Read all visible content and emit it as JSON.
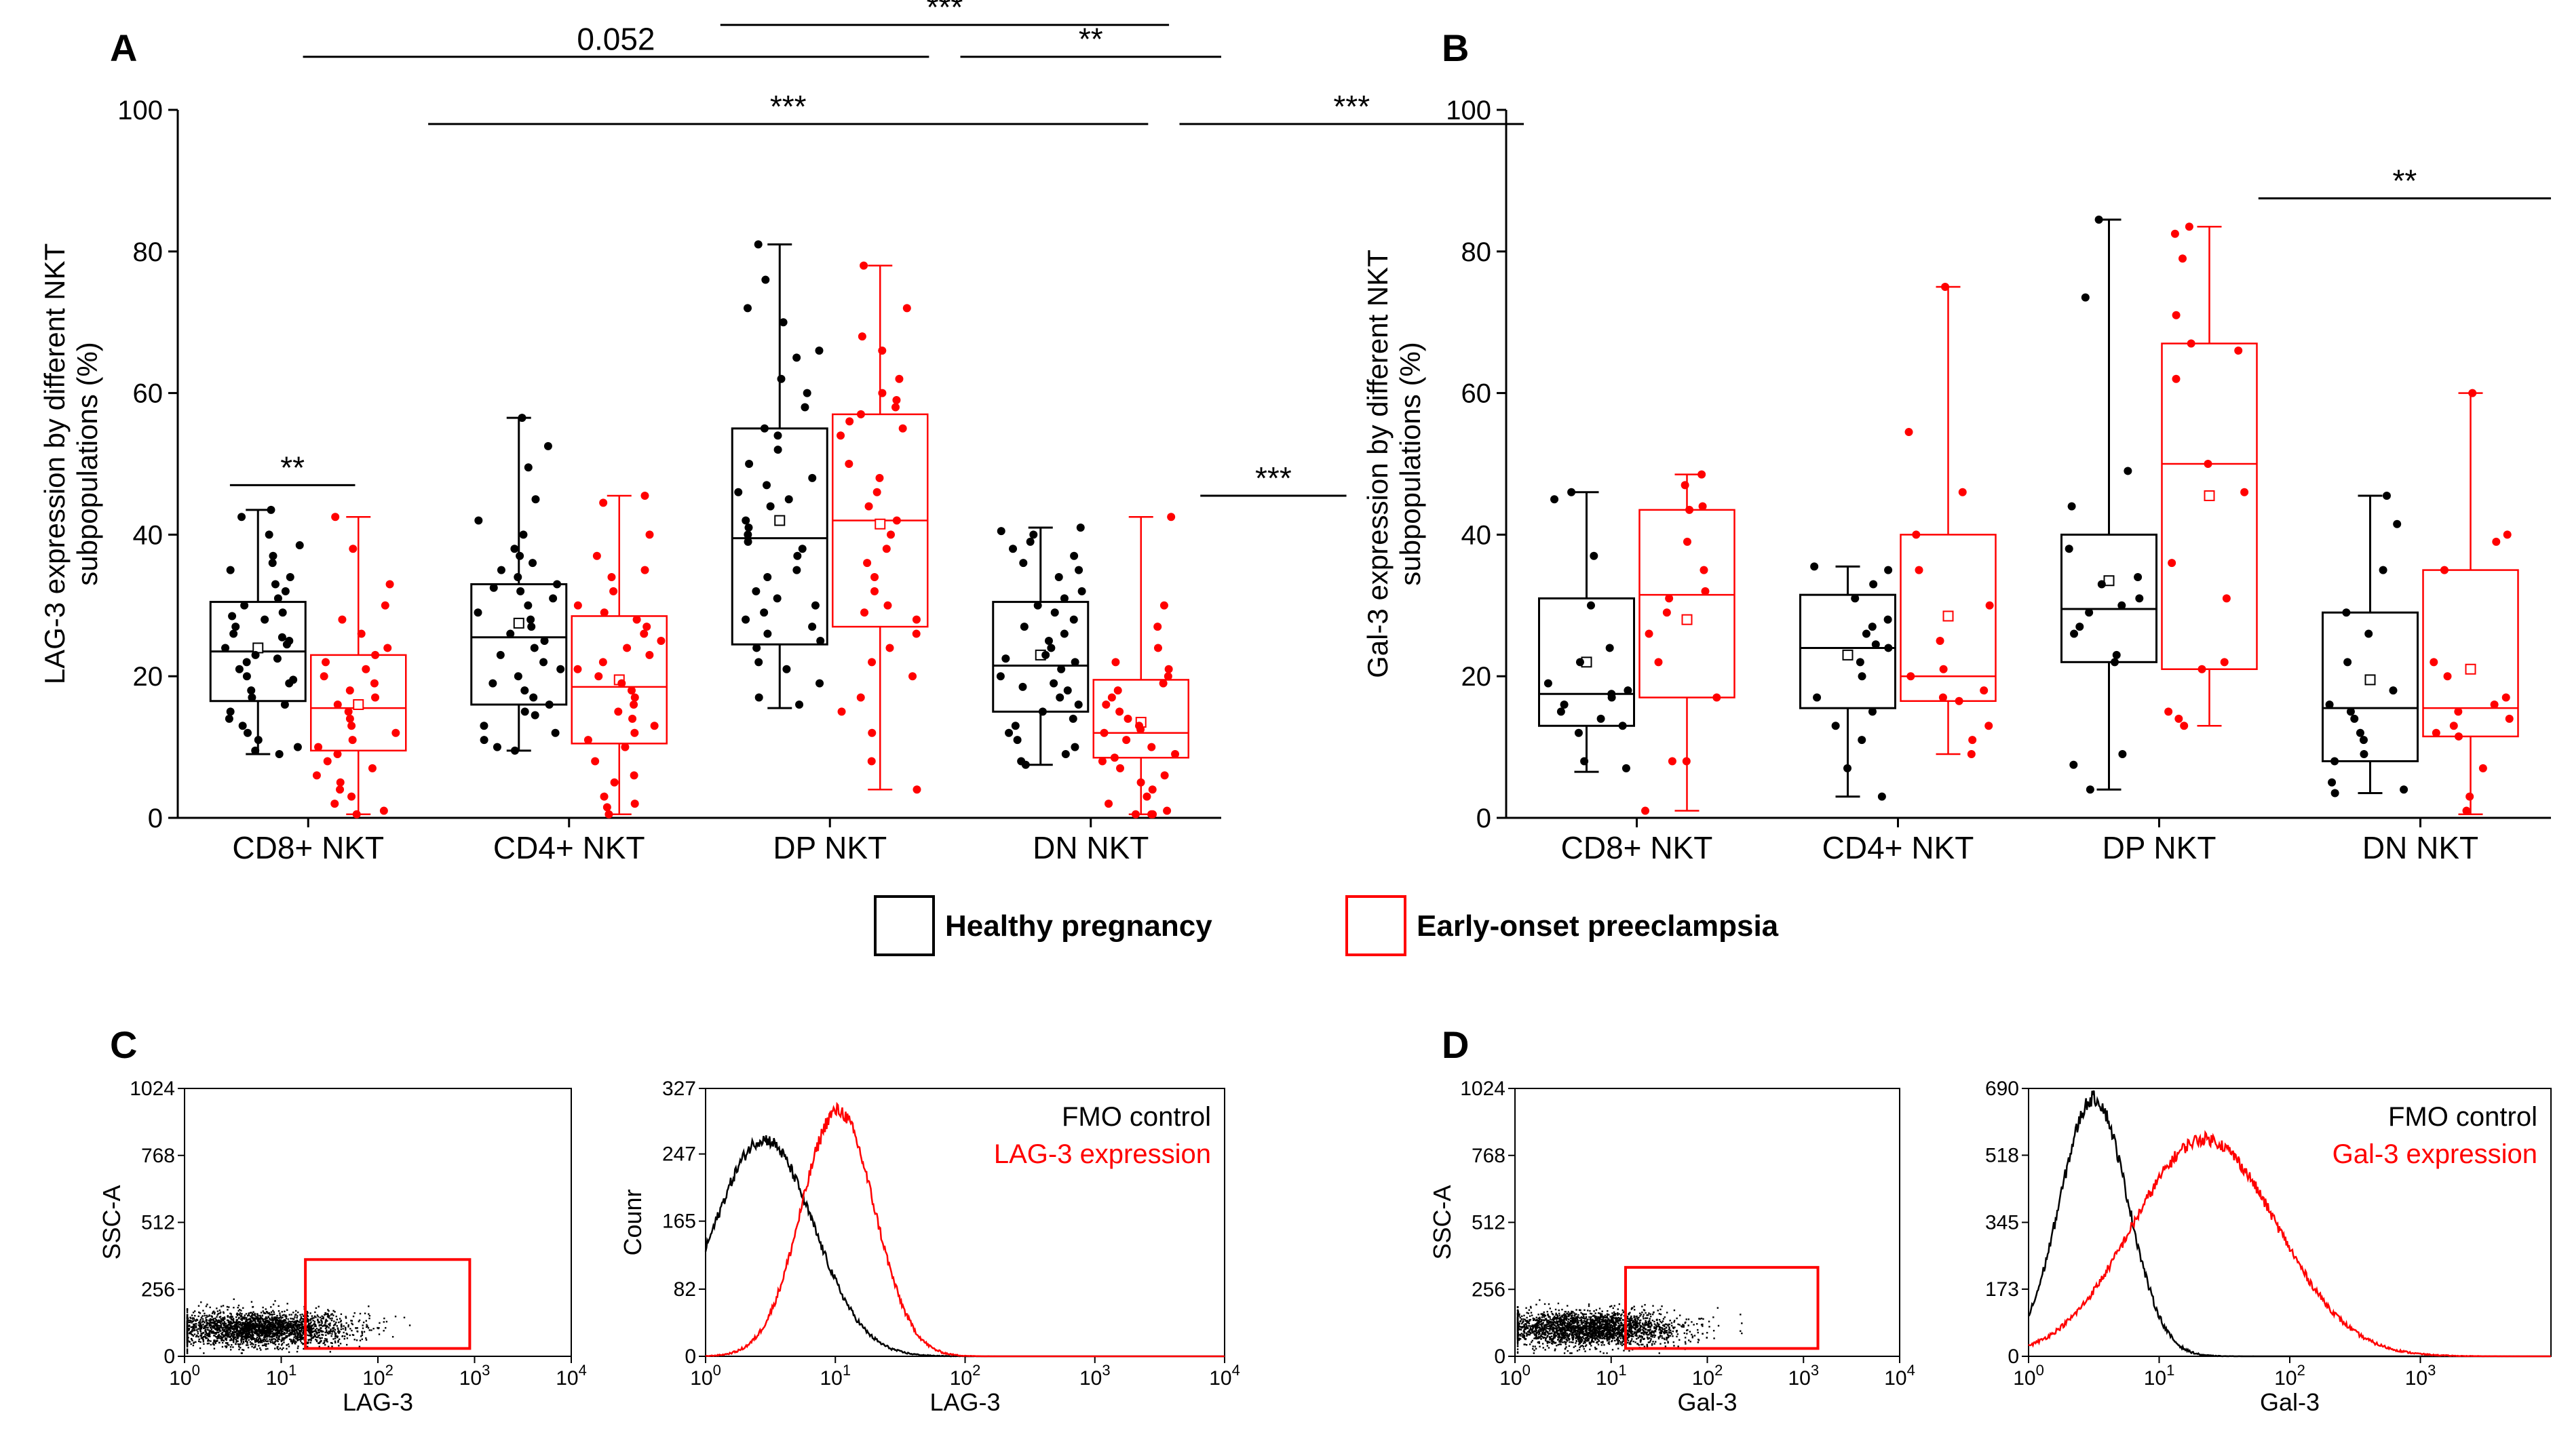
{
  "colors": {
    "healthy": "#000000",
    "preeclampsia": "#ff0000"
  },
  "legend": {
    "healthy": "Healthy pregnancy",
    "preeclampsia": "Early-onset preeclampsia"
  },
  "panels": {
    "A": {
      "letter": "A"
    },
    "B": {
      "letter": "B"
    },
    "C": {
      "letter": "C"
    },
    "D": {
      "letter": "D"
    }
  },
  "chart_data": [
    {
      "panel": "A",
      "type": "box",
      "ylabel": "LAG-3 expression by different NKT subpopulations (%)",
      "ylabel_lines": [
        "LAG-3 expression by different NKT",
        "subpopulations (%)"
      ],
      "ylim": [
        0,
        100
      ],
      "yticks": [
        "0",
        "20",
        "40",
        "60",
        "80",
        "100"
      ],
      "categories": [
        "CD8+ NKT",
        "CD4+ NKT",
        "DP NKT",
        "DN NKT"
      ],
      "series": [
        {
          "name": "Healthy pregnancy",
          "boxes": [
            {
              "min": 9,
              "q1": 16.5,
              "median": 23.5,
              "q3": 30.5,
              "max": 43.5,
              "mean": 24,
              "points": [
                43.5,
                42.5,
                40,
                38.5,
                37,
                36,
                35,
                34,
                33,
                32,
                31,
                30,
                29,
                28.5,
                28,
                27,
                26,
                25.5,
                25,
                24.5,
                24,
                23,
                22.5,
                22,
                21,
                20,
                19.5,
                19,
                18,
                17,
                16,
                15,
                14,
                13,
                12,
                11,
                10,
                9.5,
                9
              ]
            },
            {
              "min": 9.5,
              "q1": 16,
              "median": 25.5,
              "q3": 33,
              "max": 56.5,
              "mean": 27.5,
              "points": [
                56.5,
                52.5,
                49.5,
                45,
                42,
                40,
                38,
                37,
                36,
                35,
                34,
                33,
                32.5,
                32,
                31,
                30,
                29,
                28,
                27,
                26,
                25,
                24,
                23,
                22,
                21,
                20,
                19,
                18,
                17,
                16,
                15,
                14.5,
                13,
                12,
                11,
                10,
                9.5
              ]
            },
            {
              "min": 15.5,
              "q1": 24.5,
              "median": 39.5,
              "q3": 55,
              "max": 81,
              "mean": 42,
              "points": [
                81,
                76,
                72,
                70,
                66,
                65,
                62,
                60,
                58,
                55,
                54,
                52,
                50,
                48,
                47,
                46,
                45,
                44,
                42,
                41,
                40,
                39,
                38,
                37,
                35,
                34,
                32,
                31,
                30,
                29,
                28,
                27,
                26,
                25,
                24,
                22,
                21,
                19,
                17,
                16
              ]
            },
            {
              "min": 7.5,
              "q1": 15,
              "median": 21.5,
              "q3": 30.5,
              "max": 41,
              "mean": 23,
              "points": [
                41,
                40.5,
                40,
                39,
                38,
                37,
                36,
                35,
                34,
                32,
                31,
                30,
                29,
                28,
                27,
                26,
                25,
                24,
                23,
                22.5,
                22,
                21,
                20,
                19,
                18.5,
                18,
                17,
                16,
                15,
                14,
                13,
                12,
                11,
                10,
                9,
                8,
                7.5
              ]
            }
          ]
        },
        {
          "name": "Early-onset preeclampsia",
          "boxes": [
            {
              "min": 0.5,
              "q1": 9.5,
              "median": 15.5,
              "q3": 23,
              "max": 42.5,
              "mean": 16,
              "points": [
                42.5,
                38,
                33,
                30,
                28,
                26,
                24,
                23,
                22,
                21,
                20,
                19,
                18,
                17,
                16,
                15,
                14,
                13,
                12,
                11,
                10,
                9,
                8,
                7,
                6,
                5,
                4,
                3,
                2,
                1,
                0.5
              ]
            },
            {
              "min": 0.5,
              "q1": 10.5,
              "median": 18.5,
              "q3": 28.5,
              "max": 45.5,
              "mean": 19.5,
              "points": [
                45.5,
                44.5,
                40,
                37,
                35,
                34,
                32,
                30,
                29,
                28,
                27,
                26,
                25,
                24,
                23,
                22,
                21,
                20,
                19,
                18,
                17,
                16,
                15,
                14,
                13,
                12,
                11,
                10,
                8,
                6,
                5,
                3,
                2,
                1.5,
                0.5
              ]
            },
            {
              "min": 4,
              "q1": 27,
              "median": 42,
              "q3": 57,
              "max": 78,
              "mean": 41.5,
              "points": [
                78,
                72,
                68,
                66,
                62,
                60,
                59,
                58,
                57,
                56,
                55,
                54,
                50,
                48,
                46,
                44,
                42,
                40,
                38,
                36,
                34,
                32,
                30,
                29,
                28,
                26,
                24,
                22,
                20,
                17,
                15,
                12,
                8,
                4
              ]
            },
            {
              "min": 0.5,
              "q1": 8.5,
              "median": 12,
              "q3": 19.5,
              "max": 42.5,
              "mean": 13.5,
              "points": [
                42.5,
                30,
                27,
                24,
                22,
                21,
                20,
                19,
                18,
                17,
                16,
                15,
                14,
                13,
                12.5,
                12,
                11,
                10,
                9,
                8.5,
                8,
                7,
                6,
                5,
                4,
                3,
                2,
                1,
                0.5,
                0.5,
                0.5
              ]
            }
          ]
        }
      ],
      "significance": [
        {
          "label": "***",
          "from": 0.52,
          "to": 0.95,
          "y": 112
        },
        {
          "label": "0.052",
          "from": 0.12,
          "to": 0.72,
          "y": 107.5
        },
        {
          "label": "**",
          "from": 0.75,
          "to": 1.0,
          "y": 107.5
        },
        {
          "label": "***",
          "from": 0.24,
          "to": 0.93,
          "y": 98
        },
        {
          "label": "***",
          "from": 0.96,
          "to": 1.29,
          "y": 98
        },
        {
          "label": "**",
          "from": 0.05,
          "to": 0.17,
          "y": 47
        },
        {
          "label": "***",
          "from": 0.98,
          "to": 1.12,
          "y": 45.5
        }
      ]
    },
    {
      "panel": "B",
      "type": "box",
      "ylabel": "Gal-3 expression by different NKT subpopulations (%)",
      "ylabel_lines": [
        "Gal-3 expression by different NKT",
        "subpopulations (%)"
      ],
      "ylim": [
        0,
        100
      ],
      "yticks": [
        "0",
        "20",
        "40",
        "60",
        "80",
        "100"
      ],
      "categories": [
        "CD8+ NKT",
        "CD4+ NKT",
        "DP NKT",
        "DN NKT"
      ],
      "series": [
        {
          "name": "Healthy pregnancy",
          "boxes": [
            {
              "min": 6.5,
              "q1": 13,
              "median": 17.5,
              "q3": 31,
              "max": 46,
              "mean": 22,
              "points": [
                46,
                45,
                37,
                30,
                24,
                22,
                19,
                18,
                17.5,
                17,
                16,
                15,
                14,
                13,
                12,
                8,
                7
              ]
            },
            {
              "min": 3,
              "q1": 15.5,
              "median": 24,
              "q3": 31.5,
              "max": 35.5,
              "mean": 23,
              "points": [
                35.5,
                35,
                33,
                31,
                28,
                27,
                26,
                24.5,
                24,
                22,
                20,
                17,
                15,
                13,
                11,
                7,
                3
              ]
            },
            {
              "min": 4,
              "q1": 22,
              "median": 29.5,
              "q3": 40,
              "max": 84.5,
              "mean": 33.5,
              "points": [
                84.5,
                73.5,
                49,
                44,
                38,
                34,
                33,
                31,
                30,
                29,
                27,
                26,
                23,
                22,
                9,
                7.5,
                4
              ]
            },
            {
              "min": 3.5,
              "q1": 8,
              "median": 15.5,
              "q3": 29,
              "max": 45.5,
              "mean": 19.5,
              "points": [
                45.5,
                41.5,
                35,
                29,
                26,
                22,
                18,
                16,
                15,
                14,
                12,
                11,
                9,
                8,
                5,
                4,
                3.5
              ]
            }
          ]
        },
        {
          "name": "Early-onset preeclampsia",
          "boxes": [
            {
              "min": 1,
              "q1": 17,
              "median": 31.5,
              "q3": 43.5,
              "max": 48.5,
              "mean": 28,
              "points": [
                48.5,
                47,
                44,
                43.5,
                39,
                35,
                32,
                31,
                29,
                26,
                22,
                17,
                8,
                8,
                1
              ]
            },
            {
              "min": 9,
              "q1": 16.5,
              "median": 20,
              "q3": 40,
              "max": 75,
              "mean": 28.5,
              "points": [
                75,
                54.5,
                46,
                40,
                35,
                30,
                25,
                21,
                20,
                18,
                17,
                16.5,
                13,
                11,
                9
              ]
            },
            {
              "min": 13,
              "q1": 21,
              "median": 50,
              "q3": 67,
              "max": 83.5,
              "mean": 45.5,
              "points": [
                83.5,
                82.5,
                79,
                71,
                67,
                66,
                62,
                50,
                46,
                36,
                31,
                22,
                21,
                15,
                14,
                13
              ]
            },
            {
              "min": 0.5,
              "q1": 11.5,
              "median": 15.5,
              "q3": 35,
              "max": 60,
              "mean": 21,
              "points": [
                60,
                40,
                39,
                35,
                22,
                20,
                17,
                16,
                15,
                14,
                13,
                12,
                11.5,
                7,
                3,
                1
              ]
            }
          ]
        }
      ],
      "significance": [
        {
          "label": "**",
          "from": 0.72,
          "to": 1.0,
          "y": 87.5
        }
      ]
    },
    {
      "panel": "C",
      "type": "scatter",
      "xlabel": "LAG-3",
      "ylabel": "SSC-A",
      "xlim_log": [
        0,
        4
      ],
      "yticks": [
        "0",
        "256",
        "512",
        "768",
        "1024"
      ],
      "xticks": [
        "10⁰",
        "10¹",
        "10²",
        "10³",
        "10⁴"
      ],
      "gate_log": {
        "x": [
          1.25,
          2.95
        ],
        "y": [
          30,
          370
        ]
      }
    },
    {
      "panel": "C",
      "type": "line",
      "xlabel": "LAG-3",
      "ylabel": "Counr",
      "xlim_log": [
        0,
        4
      ],
      "yticks": [
        "0",
        "82",
        "165",
        "247",
        "327"
      ],
      "xticks": [
        "10⁰",
        "10¹",
        "10²",
        "10³",
        "10⁴"
      ],
      "legend": [
        "FMO control",
        "LAG-3 expression"
      ],
      "series": [
        {
          "name": "FMO control",
          "color": "#000000",
          "peak_log": 0.45,
          "peak": 265,
          "width": 0.38
        },
        {
          "name": "LAG-3 expression",
          "color": "#ff0000",
          "peak_log": 1.02,
          "peak": 300,
          "width": 0.28
        }
      ]
    },
    {
      "panel": "D",
      "type": "scatter",
      "xlabel": "Gal-3",
      "ylabel": "SSC-A",
      "xlim_log": [
        0,
        4
      ],
      "yticks": [
        "0",
        "256",
        "512",
        "768",
        "1024"
      ],
      "xticks": [
        "10⁰",
        "10¹",
        "10²",
        "10³",
        "10⁴"
      ],
      "gate_log": {
        "x": [
          1.15,
          3.15
        ],
        "y": [
          30,
          340
        ]
      }
    },
    {
      "panel": "D",
      "type": "line",
      "xlabel": "Gal-3",
      "ylabel": "",
      "xlim_log": [
        0,
        4
      ],
      "yticks": [
        "0",
        "173",
        "345",
        "518",
        "690"
      ],
      "xticks": [
        "10⁰",
        "10¹",
        "10²",
        "10³"
      ],
      "legend": [
        "FMO control",
        "Gal-3 expression"
      ],
      "series": [
        {
          "name": "FMO control",
          "color": "#000000",
          "peak_log": 0.5,
          "peak": 665,
          "width": 0.26
        },
        {
          "name": "Gal-3 expression",
          "color": "#ff0000",
          "peak_log": 1.35,
          "peak": 560,
          "width": 0.55
        }
      ]
    }
  ]
}
